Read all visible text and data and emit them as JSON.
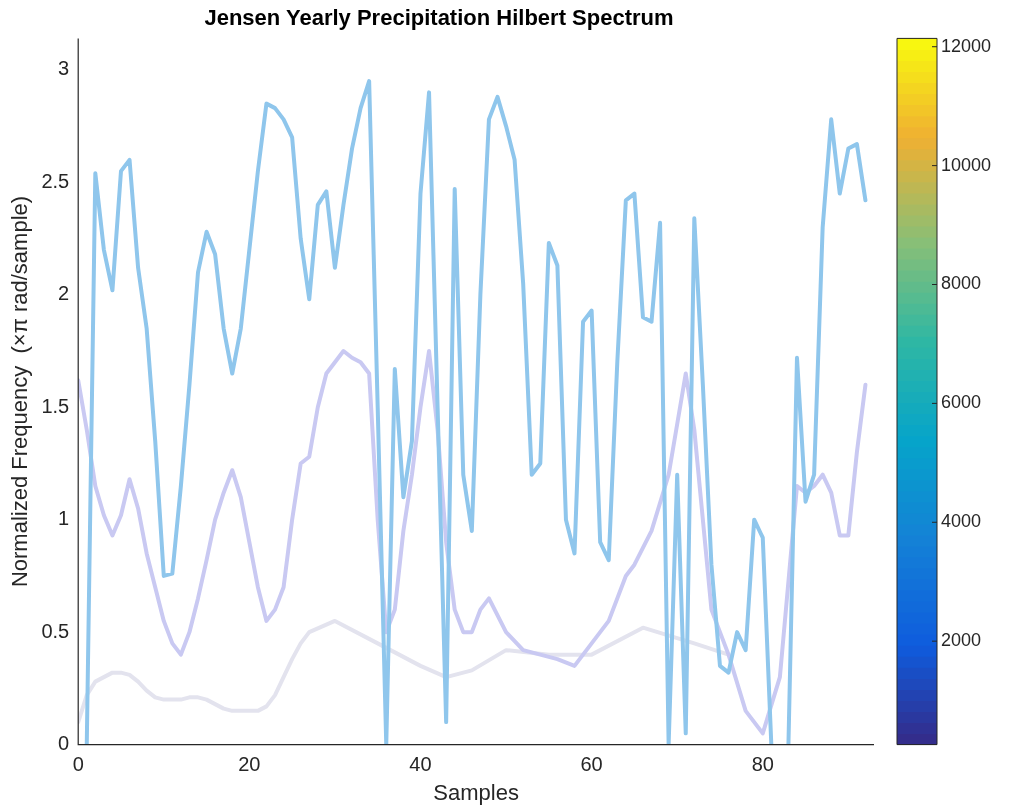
{
  "chart_data": {
    "type": "line",
    "title": "Jensen Yearly Precipitation Hilbert Spectrum",
    "xlabel": "Samples",
    "ylabel": "Normalized Frequency  (×π rad/sample)",
    "xlim": [
      0,
      93
    ],
    "ylim": [
      0,
      3.14
    ],
    "xticks": [
      0,
      20,
      40,
      60,
      80
    ],
    "yticks": [
      0,
      0.5,
      1,
      1.5,
      2,
      2.5,
      3
    ],
    "clim": [
      260,
      12140
    ],
    "cticks": [
      2000,
      4000,
      6000,
      8000,
      10000,
      12000
    ],
    "grid": false,
    "legend": false,
    "line_style": "solid",
    "marker": "none",
    "series": [
      {
        "color": "#8fc6ec",
        "x": [
          1,
          2,
          3,
          4,
          5,
          6,
          7,
          8,
          9,
          10,
          11,
          12,
          13,
          14,
          15,
          16,
          17,
          18,
          19,
          20,
          21,
          22,
          23,
          24,
          25,
          26,
          27,
          28,
          29,
          30,
          31,
          32,
          33,
          34,
          35,
          36,
          37,
          38,
          39,
          40,
          41,
          42,
          43,
          44,
          45,
          46,
          47,
          48,
          49,
          50,
          51,
          52,
          53,
          54,
          55,
          56,
          57,
          58,
          59,
          60,
          61,
          62,
          63,
          64,
          65,
          66,
          67,
          68,
          69,
          70,
          71,
          72,
          73,
          74,
          75,
          76,
          77,
          78,
          79,
          80,
          81,
          82,
          83,
          84,
          85,
          86,
          87,
          88,
          89,
          90,
          91,
          92
        ],
        "values": [
          0,
          2.54,
          2.2,
          2.02,
          2.55,
          2.6,
          2.12,
          1.85,
          1.35,
          0.75,
          0.76,
          1.15,
          1.6,
          2.1,
          2.28,
          2.18,
          1.85,
          1.65,
          1.85,
          2.2,
          2.55,
          2.85,
          2.83,
          2.78,
          2.7,
          2.25,
          1.98,
          2.4,
          2.46,
          2.12,
          2.4,
          2.65,
          2.83,
          2.95,
          1.5,
          0,
          1.67,
          1.1,
          1.35,
          2.45,
          2.9,
          1.5,
          0.1,
          2.47,
          1.2,
          0.95,
          2,
          2.78,
          2.88,
          2.75,
          2.6,
          2.05,
          1.2,
          1.25,
          2.23,
          2.13,
          1,
          0.85,
          1.88,
          1.93,
          0.9,
          0.82,
          1.7,
          2.42,
          2.45,
          1.9,
          1.88,
          2.32,
          0,
          1.2,
          0.05,
          2.34,
          1.6,
          0.8,
          0.35,
          0.32,
          0.5,
          0.42,
          1,
          0.92,
          0,
          null,
          0,
          1.72,
          1.08,
          1.2,
          2.3,
          2.78,
          2.45,
          2.65,
          2.67,
          2.42
        ]
      },
      {
        "color": "#c9c9f2",
        "x": [
          0,
          1,
          2,
          3,
          4,
          5,
          6,
          7,
          8,
          9,
          10,
          11,
          12,
          13,
          14,
          15,
          16,
          17,
          18,
          19,
          20,
          21,
          22,
          23,
          24,
          25,
          26,
          27,
          28,
          29,
          30,
          31,
          32,
          33,
          34,
          35,
          36,
          37,
          38,
          39,
          40,
          41,
          42,
          43,
          44,
          45,
          46,
          47,
          48,
          50,
          52,
          54,
          56,
          58,
          60,
          62,
          64,
          65,
          67,
          69,
          71,
          72,
          74,
          76,
          78,
          80,
          82,
          84,
          85,
          86,
          87,
          88,
          89,
          90,
          91,
          92
        ],
        "values": [
          1.62,
          1.4,
          1.15,
          1.02,
          0.93,
          1.02,
          1.18,
          1.05,
          0.85,
          0.7,
          0.55,
          0.45,
          0.4,
          0.5,
          0.65,
          0.82,
          1,
          1.12,
          1.22,
          1.1,
          0.9,
          0.7,
          0.55,
          0.6,
          0.7,
          1,
          1.25,
          1.28,
          1.5,
          1.65,
          1.7,
          1.75,
          1.72,
          1.7,
          1.65,
          1,
          0.5,
          0.6,
          0.95,
          1.2,
          1.5,
          1.75,
          1.4,
          0.9,
          0.6,
          0.5,
          0.5,
          0.6,
          0.65,
          0.5,
          0.42,
          0.4,
          0.38,
          0.35,
          0.45,
          0.55,
          0.75,
          0.8,
          0.95,
          1.2,
          1.65,
          1.4,
          0.6,
          0.4,
          0.15,
          0.05,
          0.3,
          1.15,
          1.12,
          1.15,
          1.2,
          1.12,
          0.93,
          0.93,
          1.3,
          1.6
        ]
      },
      {
        "color": "#e3e3ee",
        "x": [
          0,
          1,
          2,
          3,
          4,
          5,
          6,
          7,
          8,
          9,
          10,
          11,
          12,
          13,
          14,
          15,
          16,
          17,
          18,
          19,
          20,
          21,
          22,
          23,
          24,
          25,
          26,
          27,
          30,
          35,
          40,
          43,
          46,
          50,
          55,
          60,
          66,
          72,
          76
        ],
        "values": [
          0.1,
          0.22,
          0.28,
          0.3,
          0.32,
          0.32,
          0.31,
          0.28,
          0.24,
          0.21,
          0.2,
          0.2,
          0.2,
          0.21,
          0.21,
          0.2,
          0.18,
          0.16,
          0.15,
          0.15,
          0.15,
          0.15,
          0.17,
          0.22,
          0.3,
          0.38,
          0.45,
          0.5,
          0.55,
          0.45,
          0.35,
          0.3,
          0.33,
          0.42,
          0.4,
          0.4,
          0.52,
          0.45,
          0.4
        ]
      }
    ]
  }
}
